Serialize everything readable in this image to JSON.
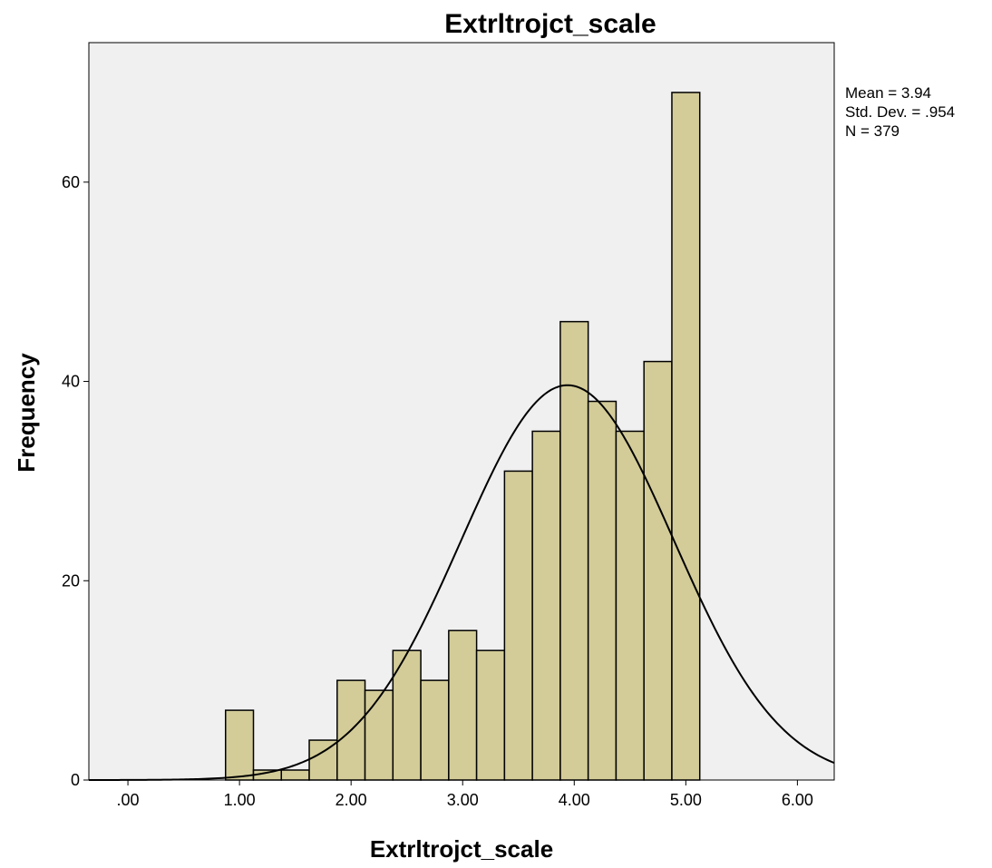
{
  "chart_data": {
    "type": "bar",
    "title": "Extrltrojct_scale",
    "xlabel": "Extrltrojct_scale",
    "ylabel": "Frequency",
    "xlim": [
      -0.35,
      6.33
    ],
    "ylim": [
      0,
      74
    ],
    "x_ticks": [
      ".00",
      "1.00",
      "2.00",
      "3.00",
      "4.00",
      "5.00",
      "6.00"
    ],
    "x_tick_values": [
      0,
      1,
      2,
      3,
      4,
      5,
      6
    ],
    "y_ticks": [
      "0",
      "20",
      "40",
      "60"
    ],
    "y_tick_values": [
      0,
      20,
      40,
      60
    ],
    "bin_width": 0.25,
    "bins": [
      {
        "x0": 0.875,
        "x1": 1.125,
        "value": 7
      },
      {
        "x0": 1.125,
        "x1": 1.375,
        "value": 1
      },
      {
        "x0": 1.375,
        "x1": 1.625,
        "value": 1
      },
      {
        "x0": 1.625,
        "x1": 1.875,
        "value": 4
      },
      {
        "x0": 1.875,
        "x1": 2.125,
        "value": 10
      },
      {
        "x0": 2.125,
        "x1": 2.375,
        "value": 9
      },
      {
        "x0": 2.375,
        "x1": 2.625,
        "value": 13
      },
      {
        "x0": 2.625,
        "x1": 2.875,
        "value": 10
      },
      {
        "x0": 2.875,
        "x1": 3.125,
        "value": 15
      },
      {
        "x0": 3.125,
        "x1": 3.375,
        "value": 13
      },
      {
        "x0": 3.375,
        "x1": 3.625,
        "value": 31
      },
      {
        "x0": 3.625,
        "x1": 3.875,
        "value": 35
      },
      {
        "x0": 3.875,
        "x1": 4.125,
        "value": 46
      },
      {
        "x0": 4.125,
        "x1": 4.375,
        "value": 38
      },
      {
        "x0": 4.375,
        "x1": 4.625,
        "value": 35
      },
      {
        "x0": 4.625,
        "x1": 4.875,
        "value": 42
      },
      {
        "x0": 4.875,
        "x1": 5.125,
        "value": 69
      }
    ],
    "normal_curve": {
      "mean": 3.94,
      "std": 0.954,
      "n": 379
    },
    "stats": [
      "Mean = 3.94",
      "Std. Dev. = .954",
      "N = 379"
    ],
    "colors": {
      "bar_fill": "#d3cc98",
      "bar_stroke": "#000000",
      "plot_bg": "#f0f0f0",
      "curve": "#000000"
    }
  }
}
